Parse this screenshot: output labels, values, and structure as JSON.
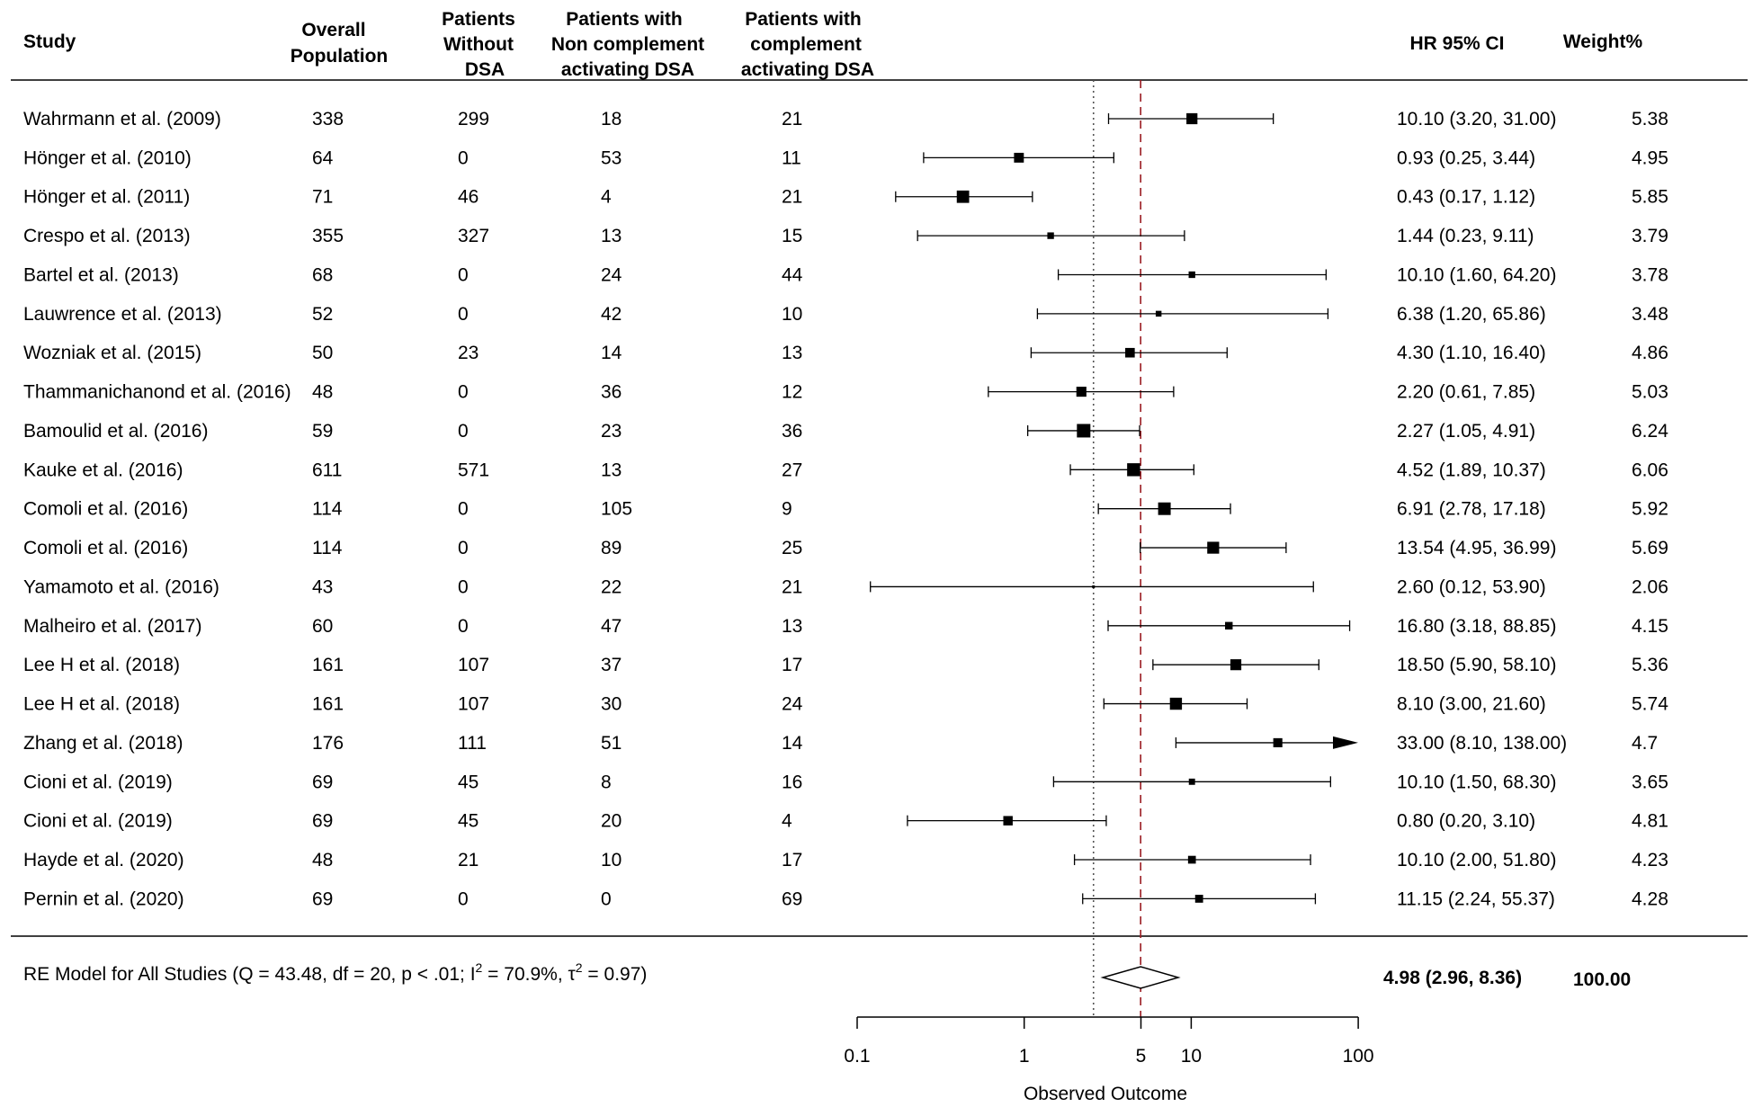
{
  "chart_data": {
    "type": "forest",
    "columns": {
      "study": "Study",
      "overall": [
        "Overall",
        "Population"
      ],
      "without": [
        "Patients",
        "Without",
        "DSA"
      ],
      "noncomp": [
        "Patients with",
        "Non complement",
        "activating DSA"
      ],
      "comp": [
        "Patients with",
        "complement",
        "activating DSA"
      ],
      "hr": "HR 95% CI",
      "weight": "Weight%"
    },
    "rows": [
      {
        "study": "Wahrmann et al. (2009)",
        "overall": "338",
        "without": "299",
        "noncomp": "18",
        "comp": "21",
        "hr": 10.1,
        "lo": 3.2,
        "hi": 31.0,
        "ci_text": "10.10 (3.20, 31.00)",
        "weight": "5.38"
      },
      {
        "study": "Hönger et al. (2010)",
        "overall": "64",
        "without": "0",
        "noncomp": "53",
        "comp": "11",
        "hr": 0.93,
        "lo": 0.25,
        "hi": 3.44,
        "ci_text": "0.93 (0.25, 3.44)",
        "weight": "4.95"
      },
      {
        "study": "Hönger et al. (2011)",
        "overall": "71",
        "without": "46",
        "noncomp": "4",
        "comp": "21",
        "hr": 0.43,
        "lo": 0.17,
        "hi": 1.12,
        "ci_text": "0.43 (0.17, 1.12)",
        "weight": "5.85"
      },
      {
        "study": "Crespo et al. (2013)",
        "overall": "355",
        "without": "327",
        "noncomp": "13",
        "comp": "15",
        "hr": 1.44,
        "lo": 0.23,
        "hi": 9.11,
        "ci_text": "1.44 (0.23, 9.11)",
        "weight": "3.79"
      },
      {
        "study": "Bartel et al. (2013)",
        "overall": "68",
        "without": "0",
        "noncomp": "24",
        "comp": "44",
        "hr": 10.1,
        "lo": 1.6,
        "hi": 64.2,
        "ci_text": "10.10 (1.60, 64.20)",
        "weight": "3.78"
      },
      {
        "study": "Lauwrence et al. (2013)",
        "overall": "52",
        "without": "0",
        "noncomp": "42",
        "comp": "10",
        "hr": 6.38,
        "lo": 1.2,
        "hi": 65.86,
        "ci_text": "6.38 (1.20, 65.86)",
        "weight": "3.48"
      },
      {
        "study": "Wozniak et al. (2015)",
        "overall": "50",
        "without": "23",
        "noncomp": "14",
        "comp": "13",
        "hr": 4.3,
        "lo": 1.1,
        "hi": 16.4,
        "ci_text": "4.30 (1.10, 16.40)",
        "weight": "4.86"
      },
      {
        "study": "Thammanichanond et al. (2016)",
        "overall": "48",
        "without": "0",
        "noncomp": "36",
        "comp": "12",
        "hr": 2.2,
        "lo": 0.61,
        "hi": 7.85,
        "ci_text": "2.20 (0.61, 7.85)",
        "weight": "5.03"
      },
      {
        "study": "Bamoulid et al. (2016)",
        "overall": "59",
        "without": "0",
        "noncomp": "23",
        "comp": "36",
        "hr": 2.27,
        "lo": 1.05,
        "hi": 4.91,
        "ci_text": "2.27 (1.05, 4.91)",
        "weight": "6.24"
      },
      {
        "study": "Kauke et al. (2016)",
        "overall": "611",
        "without": "571",
        "noncomp": "13",
        "comp": "27",
        "hr": 4.52,
        "lo": 1.89,
        "hi": 10.37,
        "ci_text": "4.52 (1.89, 10.37)",
        "weight": "6.06"
      },
      {
        "study": "Comoli et al. (2016)",
        "overall": "114",
        "without": "0",
        "noncomp": "105",
        "comp": "9",
        "hr": 6.91,
        "lo": 2.78,
        "hi": 17.18,
        "ci_text": "6.91 (2.78, 17.18)",
        "weight": "5.92"
      },
      {
        "study": "Comoli et al. (2016)",
        "overall": "114",
        "without": "0",
        "noncomp": "89",
        "comp": "25",
        "hr": 13.54,
        "lo": 4.95,
        "hi": 36.99,
        "ci_text": "13.54 (4.95, 36.99)",
        "weight": "5.69"
      },
      {
        "study": "Yamamoto et al. (2016)",
        "overall": "43",
        "without": "0",
        "noncomp": "22",
        "comp": "21",
        "hr": 2.6,
        "lo": 0.12,
        "hi": 53.9,
        "ci_text": "2.60 (0.12, 53.90)",
        "weight": "2.06"
      },
      {
        "study": "Malheiro et al. (2017)",
        "overall": "60",
        "without": "0",
        "noncomp": "47",
        "comp": "13",
        "hr": 16.8,
        "lo": 3.18,
        "hi": 88.85,
        "ci_text": "16.80 (3.18, 88.85)",
        "weight": "4.15"
      },
      {
        "study": "Lee H et al. (2018)",
        "overall": "161",
        "without": "107",
        "noncomp": "37",
        "comp": "17",
        "hr": 18.5,
        "lo": 5.9,
        "hi": 58.1,
        "ci_text": "18.50 (5.90, 58.10)",
        "weight": "5.36"
      },
      {
        "study": "Lee H et al. (2018)",
        "overall": "161",
        "without": "107",
        "noncomp": "30",
        "comp": "24",
        "hr": 8.1,
        "lo": 3.0,
        "hi": 21.6,
        "ci_text": "8.10 (3.00, 21.60)",
        "weight": "5.74"
      },
      {
        "study": "Zhang et al. (2018)",
        "overall": "176",
        "without": "111",
        "noncomp": "51",
        "comp": "14",
        "hr": 33.0,
        "lo": 8.1,
        "hi": 138.0,
        "ci_text": "33.00 (8.10, 138.00)",
        "weight": "4.7"
      },
      {
        "study": "Cioni et al. (2019)",
        "overall": "69",
        "without": "45",
        "noncomp": "8",
        "comp": "16",
        "hr": 10.1,
        "lo": 1.5,
        "hi": 68.3,
        "ci_text": "10.10 (1.50, 68.30)",
        "weight": "3.65"
      },
      {
        "study": "Cioni et al. (2019)",
        "overall": "69",
        "without": "45",
        "noncomp": "20",
        "comp": "4",
        "hr": 0.8,
        "lo": 0.2,
        "hi": 3.1,
        "ci_text": "0.80 (0.20, 3.10)",
        "weight": "4.81"
      },
      {
        "study": "Hayde et al. (2020)",
        "overall": "48",
        "without": "21",
        "noncomp": "10",
        "comp": "17",
        "hr": 10.1,
        "lo": 2.0,
        "hi": 51.8,
        "ci_text": "10.10 (2.00, 51.80)",
        "weight": "4.23"
      },
      {
        "study": "Pernin et al. (2020)",
        "overall": "69",
        "without": "0",
        "noncomp": "0",
        "comp": "69",
        "hr": 11.15,
        "lo": 2.24,
        "hi": 55.37,
        "ci_text": "11.15 (2.24, 55.37)",
        "weight": "4.28"
      }
    ],
    "summary": {
      "label_pre": "RE Model for All Studies (Q = 43.48, df = 20, p < .01; I",
      "label_sup1": "2",
      "label_mid": " = 70.9%, τ",
      "label_sup2": "2",
      "label_post": " = 0.97)",
      "hr": 4.98,
      "lo": 2.96,
      "hi": 8.36,
      "ci_text": "4.98 (2.96, 8.36)",
      "weight": "100.00"
    },
    "x_axis": {
      "scale": "log",
      "ticks": [
        0.1,
        1,
        5,
        10,
        100
      ],
      "tick_labels": [
        "0.1",
        "1",
        "5",
        "10",
        "100"
      ],
      "xlim": [
        0.1,
        100
      ],
      "label": "Observed Outcome"
    },
    "reference_lines": [
      {
        "value": 2.6,
        "style": "dotted",
        "color": "#555555"
      },
      {
        "value": 4.98,
        "style": "dashed",
        "color": "#9b1c22"
      }
    ],
    "marker_color": "#000000"
  }
}
